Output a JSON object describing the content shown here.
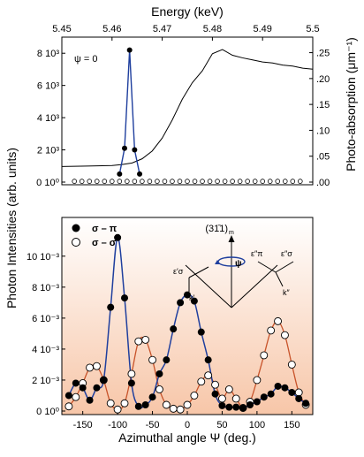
{
  "colors": {
    "sigma_pi": "#1f3f9e",
    "sigma_sigma": "#c8532a",
    "absorption": "#000000",
    "bg_top": "#ffffff",
    "bg_bottom": "#f7c6a8"
  },
  "chart_data": [
    {
      "type": "line",
      "panel": "top",
      "xlabel": "Energy (keV)",
      "xlim": [
        5.45,
        5.5
      ],
      "x_ticks": [
        "5.45",
        "5.46",
        "5.47",
        "5.48",
        "5.49",
        "5.5"
      ],
      "ylim": [
        0,
        9000
      ],
      "left_ticks": [
        "0 10⁰",
        "2 10³",
        "4 10³",
        "6 10³",
        "8 10³"
      ],
      "right_axis_label": "Photo-absorption (μm⁻¹)",
      "right_ylim": [
        0,
        0.28
      ],
      "right_ticks": [
        ".00",
        ".05",
        ".10",
        ".15",
        ".20",
        ".25"
      ],
      "annotation": "ψ = 0",
      "series": [
        {
          "marker": "filled-circle",
          "x": [
            5.4615,
            5.4625,
            5.4635,
            5.4645,
            5.4655
          ],
          "y": [
            500,
            2100,
            8200,
            2000,
            500
          ]
        },
        {
          "marker": "open-circle",
          "x": [
            5.4525,
            5.454,
            5.4555,
            5.457,
            5.4585,
            5.46,
            5.4615,
            5.463,
            5.4645,
            5.466,
            5.4675,
            5.469,
            5.4705,
            5.472,
            5.4735,
            5.475,
            5.4765,
            5.478,
            5.4795,
            5.481,
            5.4825,
            5.484,
            5.4855,
            5.487,
            5.4885,
            5.49,
            5.4915,
            5.493,
            5.4945,
            5.496,
            5.4975
          ],
          "y": [
            50,
            50,
            50,
            50,
            50,
            50,
            50,
            50,
            50,
            50,
            50,
            50,
            50,
            50,
            50,
            50,
            50,
            50,
            50,
            50,
            50,
            50,
            50,
            50,
            50,
            50,
            50,
            50,
            50,
            50,
            50
          ]
        },
        {
          "axis": "right",
          "line": "absorption",
          "x": [
            5.45,
            5.455,
            5.46,
            5.462,
            5.464,
            5.466,
            5.468,
            5.47,
            5.472,
            5.474,
            5.476,
            5.478,
            5.48,
            5.482,
            5.484,
            5.486,
            5.488,
            5.49,
            5.492,
            5.494,
            5.496,
            5.498,
            5.5
          ],
          "y": [
            0.03,
            0.031,
            0.032,
            0.034,
            0.037,
            0.045,
            0.06,
            0.085,
            0.12,
            0.16,
            0.192,
            0.215,
            0.248,
            0.256,
            0.245,
            0.24,
            0.236,
            0.232,
            0.23,
            0.226,
            0.224,
            0.22,
            0.218
          ]
        }
      ]
    },
    {
      "type": "line",
      "panel": "bottom",
      "xlabel": "Azimuthal angle Ψ (deg.)",
      "xlim": [
        -180,
        180
      ],
      "x_ticks": [
        "-150",
        "-100",
        "-50",
        "0",
        "50",
        "100",
        "150"
      ],
      "ylim": [
        0,
        12500
      ],
      "y_ticks": [
        "0 10⁰",
        "2 10⁻³",
        "4 10⁻³",
        "6 10⁻³",
        "8 10⁻³",
        "10 10⁻³"
      ],
      "shared_ylabel": "Photon Intensities (arb. units)",
      "series": [
        {
          "name": "σ – π",
          "marker": "filled-circle",
          "x": [
            -170,
            -160,
            -150,
            -140,
            -130,
            -120,
            -110,
            -100,
            -90,
            -80,
            -70,
            -60,
            -50,
            -40,
            -30,
            -20,
            -10,
            0,
            10,
            20,
            30,
            40,
            50,
            60,
            70,
            80,
            90,
            100,
            110,
            120,
            130,
            140,
            150,
            160,
            170
          ],
          "y": [
            1000,
            1800,
            1500,
            700,
            1500,
            2000,
            6700,
            11200,
            7300,
            1800,
            300,
            400,
            900,
            2400,
            3300,
            5300,
            7000,
            7500,
            7100,
            5100,
            3300,
            1100,
            350,
            250,
            250,
            200,
            400,
            600,
            900,
            1100,
            1600,
            1500,
            1200,
            800,
            500
          ]
        },
        {
          "name": "σ – σ",
          "marker": "open-circle",
          "x": [
            -170,
            -160,
            -150,
            -140,
            -130,
            -120,
            -110,
            -100,
            -90,
            -80,
            -70,
            -60,
            -50,
            -40,
            -30,
            -20,
            -10,
            0,
            10,
            20,
            30,
            40,
            50,
            60,
            70,
            80,
            90,
            100,
            110,
            120,
            130,
            140,
            150,
            160,
            170
          ],
          "y": [
            300,
            900,
            1800,
            2800,
            2900,
            2000,
            500,
            100,
            500,
            2400,
            4500,
            4600,
            3300,
            1400,
            400,
            150,
            100,
            400,
            1000,
            1900,
            2300,
            1700,
            800,
            1400,
            800,
            200,
            600,
            2000,
            3600,
            5200,
            5800,
            4900,
            3000,
            1200,
            400
          ]
        }
      ],
      "inset": {
        "title": "(31̄1)",
        "title_sub": "m",
        "psi": "ψ",
        "e_in": "ε′σ",
        "k_in": "k′",
        "e_out_pi": "ε″π",
        "e_out_sigma": "ε″σ",
        "k_out": "k″"
      }
    }
  ]
}
